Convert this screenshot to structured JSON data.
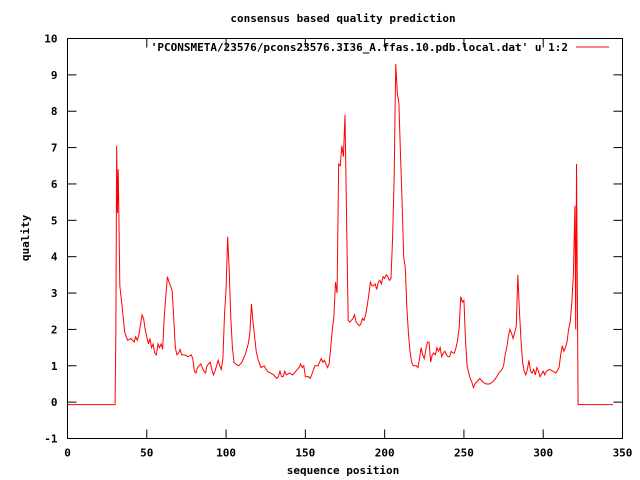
{
  "chart_data": {
    "type": "line",
    "title": "consensus based quality prediction",
    "xlabel": "sequence position",
    "ylabel": "quality",
    "xlim": [
      0,
      350
    ],
    "ylim": [
      -1,
      10
    ],
    "x_ticks": [
      "0",
      "50",
      "100",
      "150",
      "200",
      "250",
      "300",
      "350"
    ],
    "y_ticks": [
      "-1",
      "0",
      "1",
      "2",
      "3",
      "4",
      "5",
      "6",
      "7",
      "8",
      "9",
      "10"
    ],
    "grid": false,
    "legend_position": "top-right",
    "series": [
      {
        "name": "'PCONSMETA/23576/pcons23576.3I36_A.ffas.10.pdb.local.dat' u 1:2",
        "color": "#ff0000",
        "points": [
          [
            0,
            -0.07
          ],
          [
            30,
            -0.07
          ],
          [
            30.5,
            1.9
          ],
          [
            31,
            7.05
          ],
          [
            31.5,
            5.2
          ],
          [
            32,
            6.4
          ],
          [
            33,
            3.2
          ],
          [
            34,
            2.8
          ],
          [
            35,
            2.4
          ],
          [
            36,
            1.95
          ],
          [
            37,
            1.8
          ],
          [
            38,
            1.7
          ],
          [
            40,
            1.75
          ],
          [
            42,
            1.65
          ],
          [
            43,
            1.8
          ],
          [
            44,
            1.7
          ],
          [
            45,
            1.85
          ],
          [
            47,
            2.4
          ],
          [
            48,
            2.3
          ],
          [
            49,
            2.0
          ],
          [
            50,
            1.8
          ],
          [
            51,
            1.6
          ],
          [
            52,
            1.75
          ],
          [
            53,
            1.5
          ],
          [
            54,
            1.6
          ],
          [
            55,
            1.35
          ],
          [
            56,
            1.3
          ],
          [
            57,
            1.6
          ],
          [
            58,
            1.5
          ],
          [
            59,
            1.6
          ],
          [
            60,
            1.45
          ],
          [
            61,
            2.35
          ],
          [
            62,
            2.9
          ],
          [
            63,
            3.45
          ],
          [
            64,
            3.3
          ],
          [
            65,
            3.2
          ],
          [
            66,
            3.05
          ],
          [
            67,
            2.3
          ],
          [
            68,
            1.5
          ],
          [
            69,
            1.3
          ],
          [
            70,
            1.35
          ],
          [
            71,
            1.45
          ],
          [
            72,
            1.3
          ],
          [
            74,
            1.3
          ],
          [
            76,
            1.25
          ],
          [
            78,
            1.3
          ],
          [
            79,
            1.2
          ],
          [
            80,
            0.85
          ],
          [
            81,
            0.8
          ],
          [
            82,
            0.95
          ],
          [
            84,
            1.05
          ],
          [
            85,
            0.95
          ],
          [
            86,
            0.85
          ],
          [
            87,
            0.8
          ],
          [
            88,
            1.0
          ],
          [
            90,
            1.1
          ],
          [
            91,
            0.9
          ],
          [
            92,
            0.75
          ],
          [
            93,
            0.85
          ],
          [
            94,
            1.0
          ],
          [
            95,
            1.15
          ],
          [
            96,
            1.0
          ],
          [
            97,
            0.9
          ],
          [
            98,
            1.2
          ],
          [
            99,
            2.4
          ],
          [
            100,
            3.1
          ],
          [
            101,
            4.55
          ],
          [
            102,
            3.6
          ],
          [
            103,
            2.3
          ],
          [
            104,
            1.5
          ],
          [
            105,
            1.1
          ],
          [
            106,
            1.05
          ],
          [
            108,
            1.0
          ],
          [
            110,
            1.1
          ],
          [
            112,
            1.3
          ],
          [
            114,
            1.6
          ],
          [
            115,
            1.9
          ],
          [
            116,
            2.7
          ],
          [
            117,
            2.2
          ],
          [
            118,
            1.8
          ],
          [
            119,
            1.4
          ],
          [
            120,
            1.2
          ],
          [
            122,
            0.95
          ],
          [
            124,
            1.0
          ],
          [
            126,
            0.85
          ],
          [
            128,
            0.8
          ],
          [
            130,
            0.75
          ],
          [
            132,
            0.65
          ],
          [
            133,
            0.7
          ],
          [
            134,
            0.85
          ],
          [
            135,
            0.7
          ],
          [
            136,
            0.7
          ],
          [
            137,
            0.85
          ],
          [
            138,
            0.75
          ],
          [
            140,
            0.8
          ],
          [
            142,
            0.75
          ],
          [
            144,
            0.85
          ],
          [
            146,
            0.95
          ],
          [
            147,
            1.05
          ],
          [
            148,
            0.95
          ],
          [
            149,
            1.0
          ],
          [
            150,
            0.7
          ],
          [
            152,
            0.7
          ],
          [
            153,
            0.65
          ],
          [
            154,
            0.75
          ],
          [
            156,
            1.0
          ],
          [
            158,
            1.0
          ],
          [
            160,
            1.2
          ],
          [
            161,
            1.1
          ],
          [
            162,
            1.15
          ],
          [
            163,
            1.05
          ],
          [
            164,
            0.95
          ],
          [
            165,
            1.05
          ],
          [
            166,
            1.5
          ],
          [
            167,
            2.0
          ],
          [
            168,
            2.35
          ],
          [
            169,
            3.3
          ],
          [
            170,
            3.0
          ],
          [
            171,
            6.55
          ],
          [
            172,
            6.5
          ],
          [
            173,
            7.05
          ],
          [
            174,
            6.75
          ],
          [
            175,
            7.9
          ],
          [
            176,
            5.0
          ],
          [
            177,
            2.25
          ],
          [
            178,
            2.2
          ],
          [
            179,
            2.25
          ],
          [
            180,
            2.3
          ],
          [
            181,
            2.4
          ],
          [
            182,
            2.2
          ],
          [
            183,
            2.15
          ],
          [
            184,
            2.1
          ],
          [
            185,
            2.15
          ],
          [
            186,
            2.3
          ],
          [
            187,
            2.25
          ],
          [
            188,
            2.4
          ],
          [
            189,
            2.65
          ],
          [
            190,
            2.95
          ],
          [
            191,
            3.3
          ],
          [
            192,
            3.2
          ],
          [
            193,
            3.2
          ],
          [
            194,
            3.25
          ],
          [
            195,
            3.1
          ],
          [
            196,
            3.3
          ],
          [
            197,
            3.35
          ],
          [
            198,
            3.25
          ],
          [
            199,
            3.45
          ],
          [
            200,
            3.4
          ],
          [
            201,
            3.5
          ],
          [
            202,
            3.45
          ],
          [
            203,
            3.35
          ],
          [
            204,
            3.4
          ],
          [
            205,
            4.5
          ],
          [
            206,
            6.2
          ],
          [
            207,
            9.3
          ],
          [
            208,
            8.5
          ],
          [
            209,
            8.2
          ],
          [
            210,
            6.8
          ],
          [
            211,
            5.5
          ],
          [
            212,
            4.0
          ],
          [
            213,
            3.7
          ],
          [
            214,
            2.6
          ],
          [
            215,
            1.9
          ],
          [
            216,
            1.4
          ],
          [
            217,
            1.1
          ],
          [
            218,
            1.0
          ],
          [
            219,
            1.0
          ],
          [
            220,
            1.0
          ],
          [
            221,
            0.95
          ],
          [
            222,
            1.2
          ],
          [
            223,
            1.5
          ],
          [
            224,
            1.3
          ],
          [
            225,
            1.2
          ],
          [
            226,
            1.45
          ],
          [
            227,
            1.65
          ],
          [
            228,
            1.65
          ],
          [
            229,
            1.1
          ],
          [
            230,
            1.3
          ],
          [
            231,
            1.35
          ],
          [
            232,
            1.3
          ],
          [
            233,
            1.5
          ],
          [
            234,
            1.4
          ],
          [
            235,
            1.5
          ],
          [
            236,
            1.25
          ],
          [
            237,
            1.35
          ],
          [
            238,
            1.4
          ],
          [
            239,
            1.3
          ],
          [
            240,
            1.25
          ],
          [
            241,
            1.25
          ],
          [
            242,
            1.4
          ],
          [
            243,
            1.35
          ],
          [
            244,
            1.35
          ],
          [
            245,
            1.5
          ],
          [
            246,
            1.7
          ],
          [
            247,
            2.05
          ],
          [
            248,
            2.9
          ],
          [
            249,
            2.75
          ],
          [
            250,
            2.8
          ],
          [
            251,
            1.7
          ],
          [
            252,
            1.0
          ],
          [
            253,
            0.8
          ],
          [
            254,
            0.65
          ],
          [
            255,
            0.55
          ],
          [
            256,
            0.4
          ],
          [
            257,
            0.5
          ],
          [
            258,
            0.55
          ],
          [
            260,
            0.65
          ],
          [
            262,
            0.55
          ],
          [
            264,
            0.5
          ],
          [
            266,
            0.5
          ],
          [
            268,
            0.55
          ],
          [
            270,
            0.65
          ],
          [
            272,
            0.8
          ],
          [
            274,
            0.9
          ],
          [
            275,
            1.0
          ],
          [
            276,
            1.3
          ],
          [
            277,
            1.5
          ],
          [
            278,
            1.8
          ],
          [
            279,
            2.0
          ],
          [
            280,
            1.9
          ],
          [
            281,
            1.75
          ],
          [
            282,
            1.9
          ],
          [
            283,
            2.1
          ],
          [
            284,
            3.5
          ],
          [
            285,
            2.5
          ],
          [
            286,
            1.7
          ],
          [
            287,
            1.1
          ],
          [
            288,
            0.85
          ],
          [
            289,
            0.75
          ],
          [
            290,
            0.9
          ],
          [
            291,
            1.15
          ],
          [
            292,
            0.85
          ],
          [
            293,
            0.8
          ],
          [
            294,
            0.9
          ],
          [
            295,
            0.75
          ],
          [
            296,
            0.95
          ],
          [
            297,
            0.85
          ],
          [
            298,
            0.7
          ],
          [
            300,
            0.85
          ],
          [
            301,
            0.75
          ],
          [
            302,
            0.85
          ],
          [
            304,
            0.9
          ],
          [
            306,
            0.85
          ],
          [
            308,
            0.8
          ],
          [
            310,
            0.95
          ],
          [
            311,
            1.3
          ],
          [
            312,
            1.55
          ],
          [
            313,
            1.4
          ],
          [
            314,
            1.5
          ],
          [
            315,
            1.65
          ],
          [
            316,
            2.0
          ],
          [
            317,
            2.2
          ],
          [
            318,
            2.7
          ],
          [
            319,
            3.5
          ],
          [
            320,
            5.4
          ],
          [
            320.5,
            2.0
          ],
          [
            321,
            6.55
          ],
          [
            322,
            -0.07
          ],
          [
            344,
            -0.07
          ]
        ]
      }
    ]
  }
}
